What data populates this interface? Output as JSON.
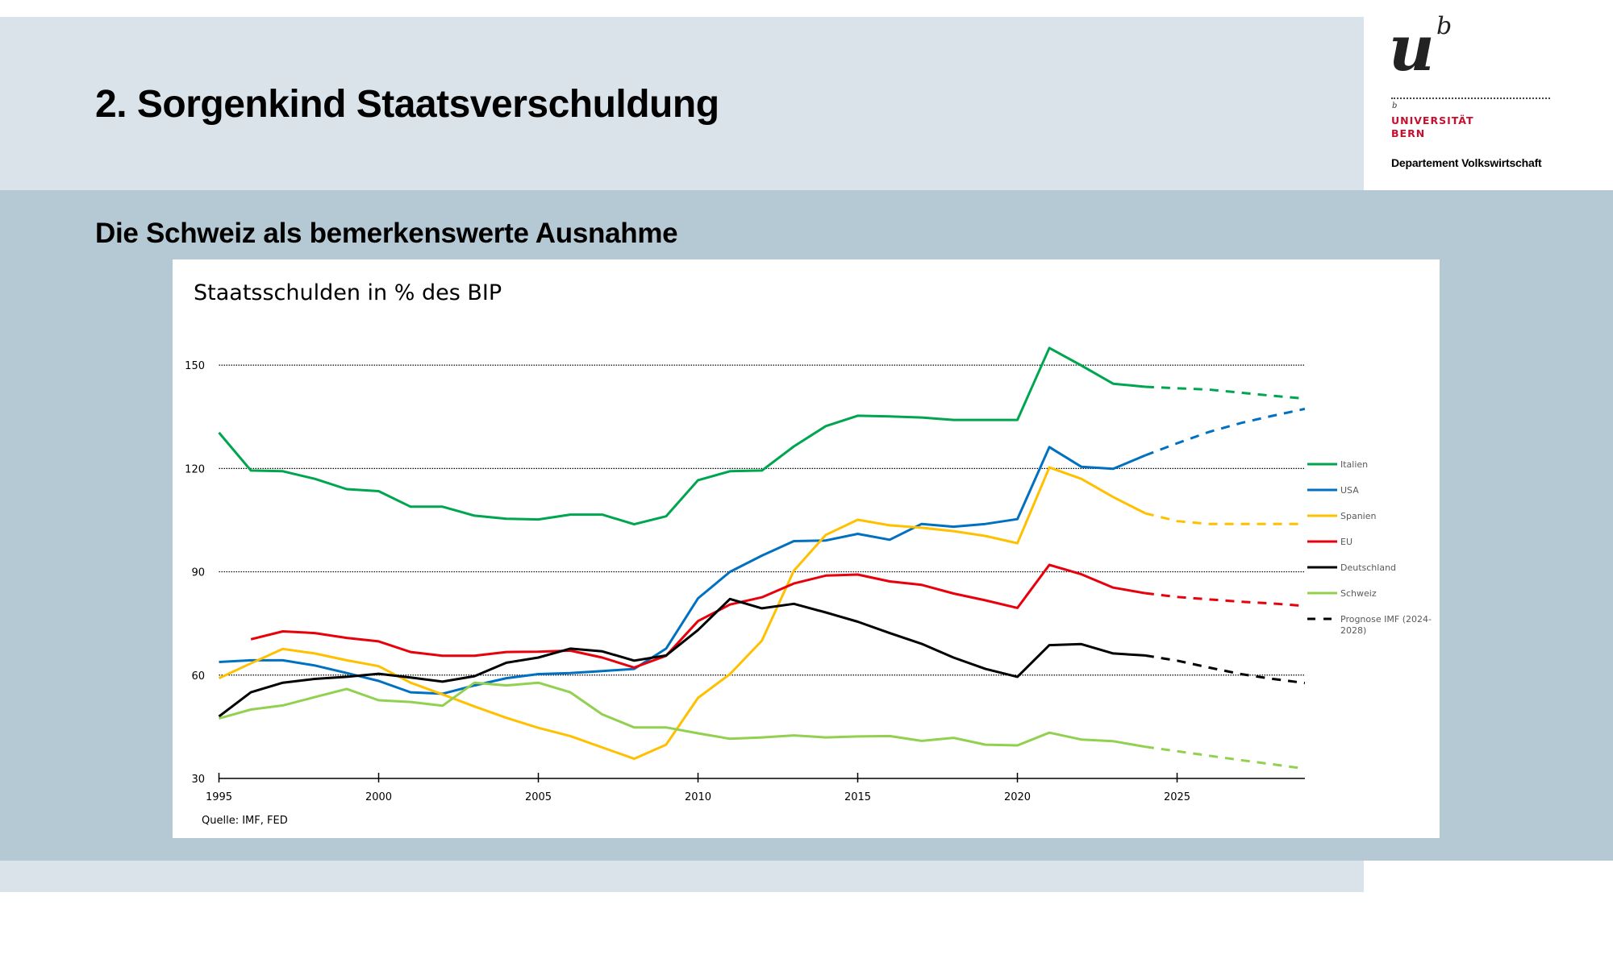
{
  "slide": {
    "title": "2. Sorgenkind Staatsverschuldung",
    "subtitle": "Die Schweiz als bemerkenswerte Ausnahme"
  },
  "logo": {
    "mark_u": "u",
    "mark_b": "b",
    "small_b": "b",
    "university_line1": "UNIVERSITÄT",
    "university_line2": "BERN",
    "department": "Departement Volkswirtschaft",
    "brand_color": "#c8102e"
  },
  "chart_data": {
    "type": "line",
    "title": "Staatsschulden in % des BIP",
    "xlabel": "",
    "ylabel": "",
    "source": "Quelle: IMF, FED",
    "xlim": [
      1995,
      2029
    ],
    "ylim": [
      30,
      160
    ],
    "x_ticks": [
      1995,
      2000,
      2005,
      2010,
      2015,
      2020,
      2025
    ],
    "y_ticks": [
      30,
      60,
      90,
      120,
      150
    ],
    "grid": "horizontal-dotted",
    "legend_position": "right",
    "forecast_legend_label": "Prognose IMF (2024-2028)",
    "forecast_legend_label_lines": [
      "Prognose IMF (2024-",
      "2028)"
    ],
    "series": [
      {
        "name": "Italien",
        "color": "#00a550",
        "start_year": 1995,
        "values": [
          130.4,
          119.4,
          119.2,
          117.0,
          114.0,
          113.4,
          108.9,
          108.9,
          106.3,
          105.4,
          105.2,
          106.6,
          106.6,
          103.8,
          106.1,
          116.6,
          119.2,
          119.4,
          126.4,
          132.3,
          135.3,
          135.1,
          134.8,
          134.1,
          134.1,
          134.1,
          155.0,
          149.9,
          144.6,
          143.7
        ],
        "forecast_start_year": 2024,
        "forecast": [
          143.7,
          143.3,
          142.9,
          142.0,
          141.1,
          140.3
        ]
      },
      {
        "name": "USA",
        "color": "#0070c0",
        "start_year": 1995,
        "values": [
          63.8,
          64.3,
          64.3,
          62.8,
          60.6,
          58.3,
          55.0,
          54.6,
          57.0,
          59.1,
          60.3,
          60.6,
          61.2,
          61.8,
          67.7,
          82.3,
          90.0,
          94.7,
          98.9,
          99.1,
          101.0,
          99.3,
          103.9,
          103.1,
          103.9,
          105.3,
          126.2,
          120.5,
          119.9,
          123.8
        ],
        "forecast_start_year": 2024,
        "forecast": [
          123.8,
          127.3,
          130.6,
          133.2,
          135.3,
          137.3
        ]
      },
      {
        "name": "Spanien",
        "color": "#ffc000",
        "start_year": 1995,
        "values": [
          59.1,
          63.4,
          67.6,
          66.3,
          64.3,
          62.6,
          57.8,
          54.4,
          50.9,
          47.6,
          44.7,
          42.3,
          39.0,
          35.7,
          39.8,
          53.4,
          60.3,
          70.0,
          90.3,
          100.7,
          105.1,
          103.5,
          102.8,
          101.8,
          100.4,
          98.3,
          120.3,
          117.0,
          111.7,
          107.0
        ],
        "forecast_start_year": 2024,
        "forecast": [
          107.0,
          104.7,
          103.9,
          103.9,
          103.9,
          103.9
        ]
      },
      {
        "name": "EU",
        "color": "#e8000b",
        "start_year": 1996,
        "values": [
          70.4,
          72.7,
          72.2,
          70.8,
          69.8,
          66.7,
          65.6,
          65.6,
          66.7,
          66.8,
          67.1,
          65.1,
          62.2,
          65.6,
          75.7,
          80.5,
          82.6,
          86.6,
          88.9,
          89.2,
          87.2,
          86.2,
          83.7,
          81.7,
          79.5,
          92.0,
          89.3,
          85.4,
          83.8
        ],
        "forecast_start_year": 2024,
        "forecast": [
          83.8,
          82.7,
          82.0,
          81.3,
          80.8,
          80.1
        ]
      },
      {
        "name": "Deutschland",
        "color": "#000000",
        "start_year": 1995,
        "values": [
          48.0,
          55.0,
          57.8,
          58.9,
          59.5,
          60.4,
          59.3,
          58.1,
          59.7,
          63.6,
          65.1,
          67.7,
          66.9,
          64.2,
          65.7,
          73.1,
          82.1,
          79.4,
          80.7,
          78.2,
          75.5,
          72.2,
          69.1,
          65.1,
          61.8,
          59.5,
          68.7,
          69.0,
          66.3,
          65.7
        ],
        "forecast_start_year": 2024,
        "forecast": [
          65.7,
          64.2,
          62.2,
          60.3,
          58.9,
          57.7
        ]
      },
      {
        "name": "Schweiz",
        "color": "#92d050",
        "start_year": 1995,
        "values": [
          47.4,
          50.0,
          51.2,
          53.6,
          56.0,
          52.7,
          52.2,
          51.1,
          57.8,
          57.0,
          57.8,
          55.0,
          48.6,
          44.8,
          44.8,
          43.1,
          41.5,
          41.9,
          42.5,
          41.9,
          42.2,
          42.3,
          40.9,
          41.8,
          39.8,
          39.6,
          43.3,
          41.3,
          40.8,
          39.2
        ],
        "forecast_start_year": 2024,
        "forecast": [
          39.2,
          37.9,
          36.6,
          35.3,
          34.1,
          32.8
        ]
      }
    ]
  }
}
